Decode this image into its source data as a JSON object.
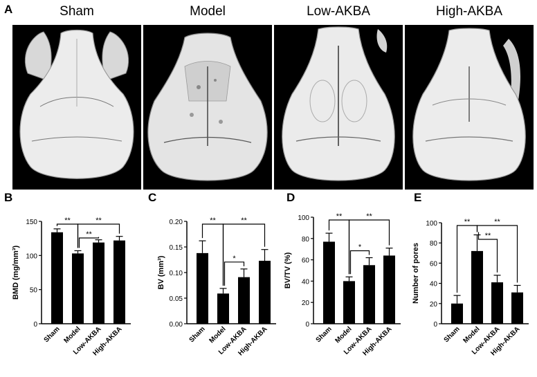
{
  "panel_a": {
    "letter": "A",
    "images": [
      {
        "title": "Sham"
      },
      {
        "title": "Model"
      },
      {
        "title": "Low-AKBA"
      },
      {
        "title": "High-AKBA"
      }
    ]
  },
  "chart_data": [
    {
      "letter": "B",
      "type": "bar",
      "categories": [
        "Sham",
        "Model",
        "Low-AKBA",
        "High-AKBA"
      ],
      "values": [
        134,
        103,
        119,
        122
      ],
      "errors": [
        5,
        4,
        4,
        6
      ],
      "ylabel": "BMD (mg/mm³)",
      "ylim": [
        0,
        150
      ],
      "yticks": [
        "0",
        "50",
        "100",
        "150"
      ],
      "ytick_values": [
        0,
        50,
        100,
        150
      ],
      "significance": [
        {
          "from": 0,
          "to": 1,
          "label": "**",
          "level": 1
        },
        {
          "from": 1,
          "to": 2,
          "label": "**",
          "level": 0
        },
        {
          "from": 1,
          "to": 3,
          "label": "**",
          "level": 1
        }
      ]
    },
    {
      "letter": "C",
      "type": "bar",
      "categories": [
        "Sham",
        "Model",
        "Low-AKBA",
        "High-AKBA"
      ],
      "values": [
        0.138,
        0.059,
        0.091,
        0.123
      ],
      "errors": [
        0.024,
        0.01,
        0.016,
        0.022
      ],
      "ylabel": "BV (mm³)",
      "ylim": [
        0,
        0.2
      ],
      "yticks": [
        "0.00",
        "0.05",
        "0.10",
        "0.15",
        "0.20"
      ],
      "ytick_values": [
        0,
        0.05,
        0.1,
        0.15,
        0.2
      ],
      "significance": [
        {
          "from": 0,
          "to": 1,
          "label": "**",
          "level": 1
        },
        {
          "from": 1,
          "to": 2,
          "label": "*",
          "level": 0
        },
        {
          "from": 1,
          "to": 3,
          "label": "**",
          "level": 1
        }
      ]
    },
    {
      "letter": "D",
      "type": "bar",
      "categories": [
        "Sham",
        "Model",
        "Low-AKBA",
        "High-AKBA"
      ],
      "values": [
        77,
        40,
        55,
        64
      ],
      "errors": [
        8,
        4,
        7,
        7
      ],
      "ylabel": "BV/TV (%)",
      "ylim": [
        0,
        100
      ],
      "yticks": [
        "0",
        "20",
        "40",
        "60",
        "80",
        "100"
      ],
      "ytick_values": [
        0,
        20,
        40,
        60,
        80,
        100
      ],
      "significance": [
        {
          "from": 0,
          "to": 1,
          "label": "**",
          "level": 1
        },
        {
          "from": 1,
          "to": 2,
          "label": "*",
          "level": 0
        },
        {
          "from": 1,
          "to": 3,
          "label": "**",
          "level": 1
        }
      ]
    },
    {
      "letter": "E",
      "type": "bar",
      "categories": [
        "Sham",
        "Model",
        "Low-AKBA",
        "High-AKBA"
      ],
      "values": [
        20,
        72,
        41,
        31
      ],
      "errors": [
        8,
        16,
        7,
        7
      ],
      "ylabel": "Number of pores",
      "ylim": [
        0,
        100
      ],
      "yticks": [
        "0",
        "20",
        "40",
        "60",
        "80",
        "100"
      ],
      "ytick_values": [
        0,
        20,
        40,
        60,
        80,
        100
      ],
      "significance": [
        {
          "from": 0,
          "to": 1,
          "label": "**",
          "level": 1
        },
        {
          "from": 1,
          "to": 2,
          "label": "**",
          "level": 0
        },
        {
          "from": 1,
          "to": 3,
          "label": "**",
          "level": 1
        }
      ]
    }
  ]
}
